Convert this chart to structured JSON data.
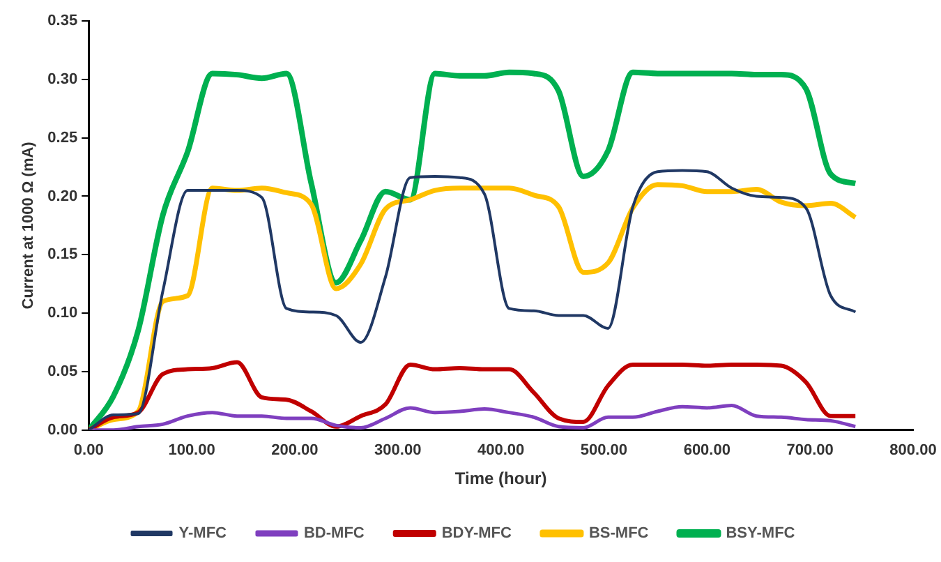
{
  "chart_data": {
    "type": "line",
    "xlabel": "Time (hour)",
    "ylabel": "Current at 1000 Ω (mA)",
    "x": [
      0,
      24,
      48,
      72,
      96,
      120,
      144,
      168,
      192,
      216,
      240,
      264,
      288,
      312,
      336,
      360,
      384,
      408,
      432,
      456,
      480,
      504,
      528,
      552,
      576,
      600,
      624,
      648,
      672,
      696,
      720,
      744
    ],
    "xlim": [
      0,
      800
    ],
    "xticks": [
      {
        "value": 0,
        "label": "0.00"
      },
      {
        "value": 100,
        "label": "100.00"
      },
      {
        "value": 200,
        "label": "200.00"
      },
      {
        "value": 300,
        "label": "300.00"
      },
      {
        "value": 400,
        "label": "400.00"
      },
      {
        "value": 500,
        "label": "500.00"
      },
      {
        "value": 600,
        "label": "600.00"
      },
      {
        "value": 700,
        "label": "700.00"
      },
      {
        "value": 800,
        "label": "800.00"
      }
    ],
    "ylim": [
      0,
      0.35
    ],
    "yticks": [
      {
        "value": 0,
        "label": "0.00"
      },
      {
        "value": 0.05,
        "label": "0.05"
      },
      {
        "value": 0.1,
        "label": "0.10"
      },
      {
        "value": 0.15,
        "label": "0.15"
      },
      {
        "value": 0.2,
        "label": "0.20"
      },
      {
        "value": 0.25,
        "label": "0.25"
      },
      {
        "value": 0.3,
        "label": "0.30"
      },
      {
        "value": 0.35,
        "label": "0.35"
      }
    ],
    "grid": false,
    "legend": "bottom",
    "marker": "none",
    "line_style": "solid",
    "series": [
      {
        "name": "Y-MFC",
        "color": "#203864",
        "values": [
          0,
          0.013,
          0.014,
          0.119,
          0.205,
          0.205,
          0.205,
          0.199,
          0.104,
          0.101,
          0.098,
          0.075,
          0.131,
          0.216,
          0.217,
          0.216,
          0.202,
          0.104,
          0.102,
          0.098,
          0.098,
          0.087,
          0.191,
          0.221,
          0.222,
          0.221,
          0.207,
          0.2,
          0.199,
          0.19,
          0.115,
          0.101
        ]
      },
      {
        "name": "BD-MFC",
        "color": "#7f3fbf",
        "values": [
          0,
          0,
          0.003,
          0.005,
          0.012,
          0.015,
          0.012,
          0.012,
          0.01,
          0.01,
          0.004,
          0.002,
          0.01,
          0.019,
          0.015,
          0.016,
          0.018,
          0.015,
          0.011,
          0.003,
          0.002,
          0.011,
          0.011,
          0.016,
          0.02,
          0.019,
          0.021,
          0.012,
          0.011,
          0.009,
          0.008,
          0.003
        ]
      },
      {
        "name": "BDY-MFC",
        "color": "#c00000",
        "values": [
          0,
          0.011,
          0.015,
          0.048,
          0.052,
          0.053,
          0.058,
          0.028,
          0.026,
          0.016,
          0.003,
          0.012,
          0.022,
          0.056,
          0.052,
          0.053,
          0.052,
          0.052,
          0.032,
          0.01,
          0.007,
          0.038,
          0.056,
          0.056,
          0.056,
          0.055,
          0.056,
          0.056,
          0.055,
          0.041,
          0.012,
          0.012
        ]
      },
      {
        "name": "BS-MFC",
        "color": "#ffc000",
        "values": [
          0,
          0.009,
          0.016,
          0.11,
          0.115,
          0.207,
          0.205,
          0.207,
          0.203,
          0.193,
          0.121,
          0.142,
          0.189,
          0.197,
          0.205,
          0.207,
          0.207,
          0.207,
          0.201,
          0.191,
          0.135,
          0.143,
          0.19,
          0.21,
          0.209,
          0.204,
          0.204,
          0.206,
          0.195,
          0.192,
          0.194,
          0.182
        ]
      },
      {
        "name": "BSY-MFC",
        "color": "#00b050",
        "values": [
          0,
          0.029,
          0.085,
          0.184,
          0.238,
          0.305,
          0.304,
          0.301,
          0.305,
          0.211,
          0.126,
          0.162,
          0.204,
          0.197,
          0.305,
          0.303,
          0.303,
          0.306,
          0.305,
          0.29,
          0.217,
          0.239,
          0.306,
          0.305,
          0.305,
          0.305,
          0.305,
          0.304,
          0.304,
          0.292,
          0.219,
          0.211
        ]
      }
    ]
  }
}
